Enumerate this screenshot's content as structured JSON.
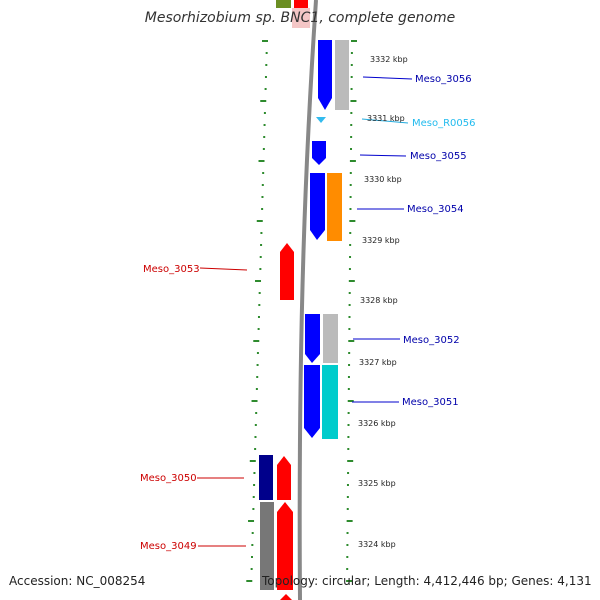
{
  "title": "Mesorhizobium sp. BNC1, complete genome",
  "footer": {
    "accession": "Accession: NC_008254",
    "topology": "Topology: circular; Length: 4,412,446 bp; Genes: 4,131"
  },
  "scale_labels": [
    "3332 kbp",
    "3331 kbp",
    "3330 kbp",
    "3329 kbp",
    "3328 kbp",
    "3327 kbp",
    "3326 kbp",
    "3325 kbp",
    "3324 kbp"
  ],
  "colors": {
    "blue": "#0000ff",
    "navy": "#00008b",
    "red": "#ff0000",
    "orange": "#ff8c00",
    "cyan": "#00cccc",
    "gray": "#bbbbbb",
    "darkgray": "#777777",
    "tick_green": "#2e8b2e",
    "backbone": "#888888",
    "label_blue": "#0000aa",
    "label_red": "#cc0000",
    "label_cyan": "#00bbee"
  },
  "gene_labels": [
    {
      "id": "Meso_3056",
      "color": "label_blue"
    },
    {
      "id": "Meso_R0056",
      "color": "label_cyan"
    },
    {
      "id": "Meso_3055",
      "color": "label_blue"
    },
    {
      "id": "Meso_3054",
      "color": "label_blue"
    },
    {
      "id": "Meso_3053",
      "color": "label_red"
    },
    {
      "id": "Meso_3052",
      "color": "label_blue"
    },
    {
      "id": "Meso_3051",
      "color": "label_blue"
    },
    {
      "id": "Meso_3050",
      "color": "label_red"
    },
    {
      "id": "Meso_3049",
      "color": "label_red"
    }
  ]
}
